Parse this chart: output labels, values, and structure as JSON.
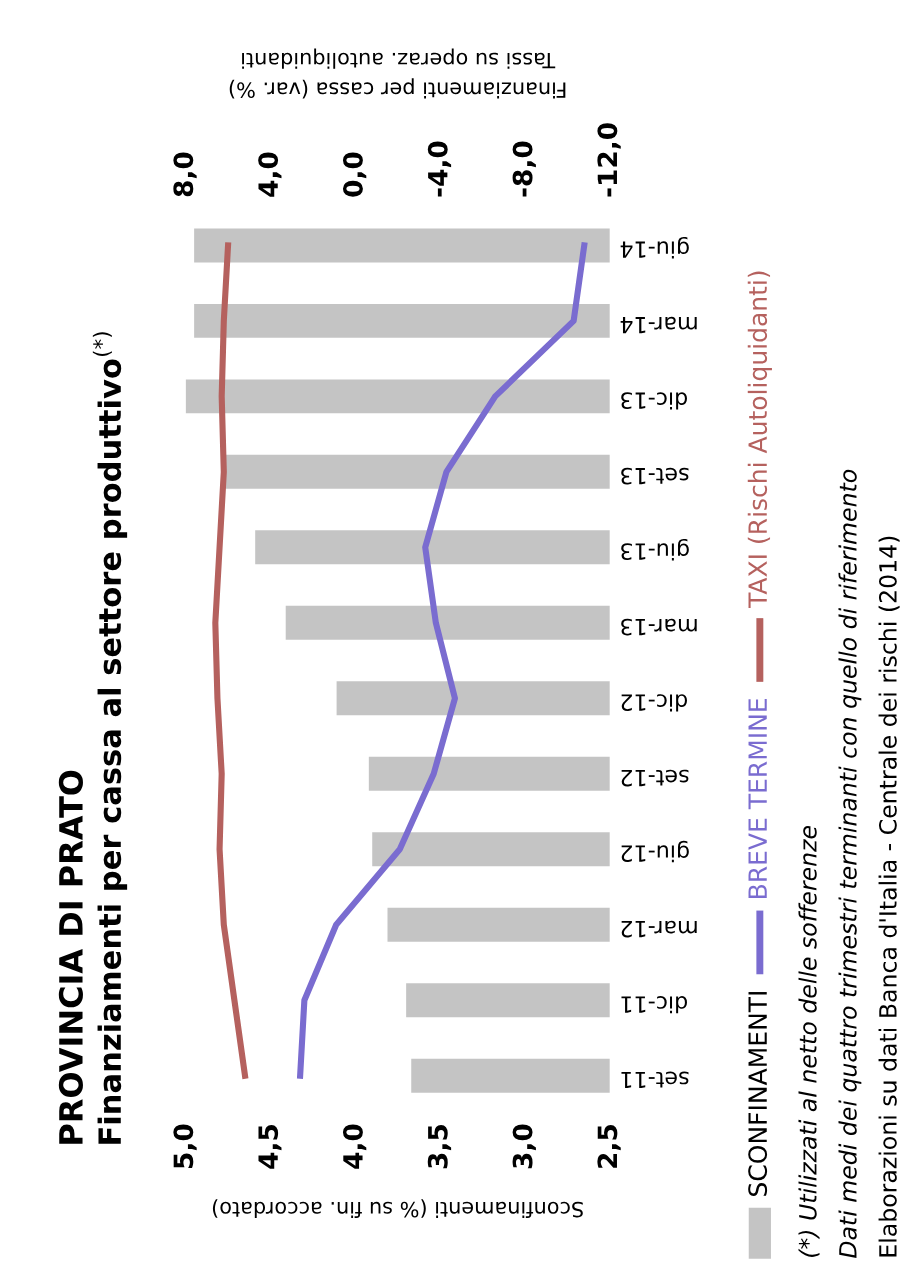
{
  "chart_data": {
    "type": "bar",
    "orientation": "horizontal",
    "title": "PROVINCIA DI PRATO",
    "subtitle": "Finanziamenti per cassa al settore produttivo$^{(*)}$",
    "xlabel": "Sconfinamenti (% su fin. accordato)",
    "x2label": "Finanziamenti per cassa (var. %)\nTassi su operaz. autoliquidanti",
    "categories": [
      "giu-14",
      "mar-14",
      "dic-13",
      "set-13",
      "giu-13",
      "mar-13",
      "dic-12",
      "set-12",
      "giu-12",
      "mar-12",
      "dic-11",
      "set-11"
    ],
    "series": [
      {
        "name": "SCONFINAMENTI",
        "color": "#c4c4c4",
        "values": [
          4.95,
          4.95,
          5.0,
          4.78,
          4.59,
          4.41,
          4.11,
          3.92,
          3.9,
          3.81,
          3.7,
          3.67
        ]
      },
      {
        "name": "BREVE TERMINE",
        "type": "line",
        "axis": "x2",
        "color": "#7a6cd0",
        "values": [
          -10.8,
          -10.3,
          -6.6,
          -4.3,
          -3.3,
          -3.8,
          -4.7,
          -3.7,
          -2.1,
          0.9,
          2.4,
          2.6
        ]
      },
      {
        "name": "TAXI (Rischi Autoliquidanti)",
        "type": "line",
        "axis": "x2",
        "color": "#b5615e",
        "values": [
          6.0,
          6.2,
          6.3,
          6.2,
          6.4,
          6.6,
          6.5,
          6.3,
          6.4,
          6.2,
          5.7,
          5.2
        ]
      }
    ],
    "xlim": [
      5.0,
      2.5
    ],
    "xticks": [
      {
        "value": 5.0,
        "label": "5,0"
      },
      {
        "value": 4.5,
        "label": "4,5"
      },
      {
        "value": 4.0,
        "label": "4,0"
      },
      {
        "value": 3.5,
        "label": "3,5"
      },
      {
        "value": 3.0,
        "label": "3,0"
      },
      {
        "value": 2.5,
        "label": "2,5"
      }
    ],
    "x2lim": [
      8.0,
      -12.0
    ],
    "x2ticks": [
      {
        "value": 8.0,
        "label": "8,0"
      },
      {
        "value": 4.0,
        "label": "4,0"
      },
      {
        "value": 0.0,
        "label": "0,0"
      },
      {
        "value": -4.0,
        "label": "-4,0"
      },
      {
        "value": -8.0,
        "label": "-8,0"
      },
      {
        "value": -12.0,
        "label": "-12,0"
      }
    ],
    "grid": false,
    "legend": "right",
    "marker": "none",
    "line_style": "solid",
    "annotations": [
      "(*) Utilizzati al netto delle sofferenze",
      "Dati medi dei quattro trimestri terminanti con quello di riferimento",
      "Elaborazioni su dati Banca d'Italia - Centrale dei rischi (2014)"
    ]
  }
}
